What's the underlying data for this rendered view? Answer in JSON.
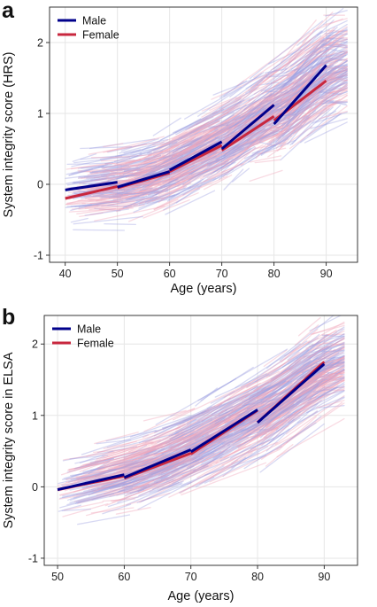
{
  "chart_data": [
    {
      "panel": "a",
      "type": "line",
      "xlabel": "Age (years)",
      "ylabel": "System integrity score (HRS)",
      "xlim": [
        37,
        96
      ],
      "ylim": [
        -1.1,
        2.5
      ],
      "xticks": [
        40,
        50,
        60,
        70,
        80,
        90
      ],
      "yticks": [
        -1,
        0,
        1,
        2
      ],
      "grid": true,
      "legend_position": "top-left",
      "background_trajectories": "many faint individual trajectories (blue = male, pink = female)",
      "series": [
        {
          "name": "Male",
          "color": "#00008b",
          "segments": [
            [
              [
                40,
                -0.08
              ],
              [
                50,
                0.03
              ]
            ],
            [
              [
                50,
                -0.04
              ],
              [
                60,
                0.18
              ]
            ],
            [
              [
                60,
                0.2
              ],
              [
                70,
                0.6
              ]
            ],
            [
              [
                70,
                0.5
              ],
              [
                80,
                1.12
              ]
            ],
            [
              [
                80,
                0.85
              ],
              [
                90,
                1.68
              ]
            ]
          ]
        },
        {
          "name": "Female",
          "color": "#c8273e",
          "segments": [
            [
              [
                40,
                -0.2
              ],
              [
                50,
                -0.03
              ]
            ],
            [
              [
                50,
                -0.05
              ],
              [
                60,
                0.16
              ]
            ],
            [
              [
                60,
                0.18
              ],
              [
                70,
                0.55
              ]
            ],
            [
              [
                70,
                0.48
              ],
              [
                80,
                0.96
              ]
            ],
            [
              [
                80,
                0.9
              ],
              [
                90,
                1.46
              ]
            ]
          ]
        }
      ]
    },
    {
      "panel": "b",
      "type": "line",
      "xlabel": "Age (years)",
      "ylabel": "System integrity score in ELSA",
      "xlim": [
        48,
        95
      ],
      "ylim": [
        -1.1,
        2.4
      ],
      "xticks": [
        50,
        60,
        70,
        80,
        90
      ],
      "yticks": [
        -1,
        0,
        1,
        2
      ],
      "grid": true,
      "legend_position": "top-left",
      "background_trajectories": "many faint individual trajectories (blue = male, pink = female)",
      "series": [
        {
          "name": "Male",
          "color": "#00008b",
          "segments": [
            [
              [
                50,
                -0.04
              ],
              [
                60,
                0.17
              ]
            ],
            [
              [
                60,
                0.13
              ],
              [
                70,
                0.52
              ]
            ],
            [
              [
                70,
                0.49
              ],
              [
                80,
                1.08
              ]
            ],
            [
              [
                80,
                0.9
              ],
              [
                90,
                1.72
              ]
            ]
          ]
        },
        {
          "name": "Female",
          "color": "#c8273e",
          "segments": [
            [
              [
                50,
                -0.04
              ],
              [
                60,
                0.15
              ]
            ],
            [
              [
                60,
                0.12
              ],
              [
                70,
                0.47
              ]
            ],
            [
              [
                70,
                0.46
              ],
              [
                80,
                1.07
              ]
            ],
            [
              [
                80,
                0.9
              ],
              [
                90,
                1.75
              ]
            ]
          ]
        }
      ]
    }
  ]
}
